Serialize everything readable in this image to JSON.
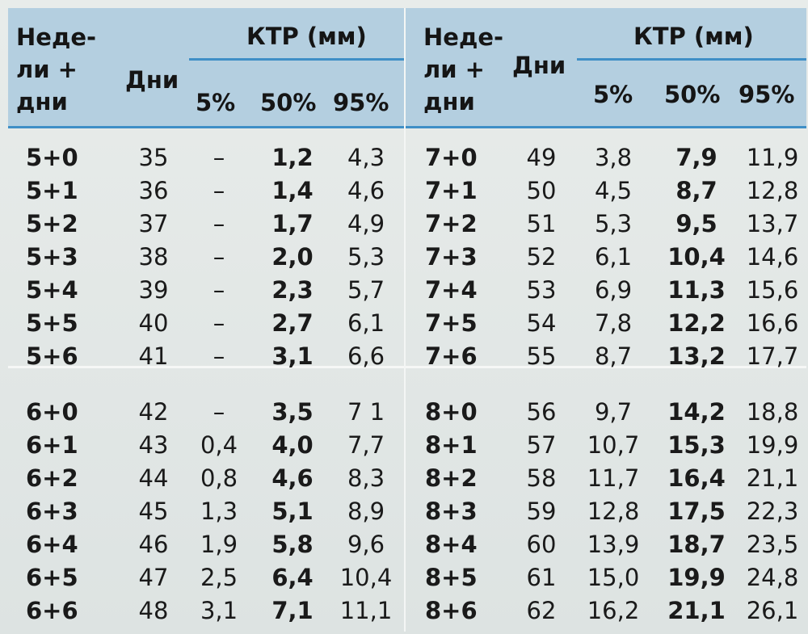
{
  "headers": {
    "weeks_days": "Неде-\nли +\nдни",
    "days": "Дни",
    "ktr": "КТР (мм)",
    "p5": "5%",
    "p50": "50%",
    "p95": "95%"
  },
  "tables": [
    {
      "blocks": [
        [
          {
            "week": "5+0",
            "days": "35",
            "p5": "–",
            "p50": "1,2",
            "p95": "4,3"
          },
          {
            "week": "5+1",
            "days": "36",
            "p5": "–",
            "p50": "1,4",
            "p95": "4,6"
          },
          {
            "week": "5+2",
            "days": "37",
            "p5": "–",
            "p50": "1,7",
            "p95": "4,9"
          },
          {
            "week": "5+3",
            "days": "38",
            "p5": "–",
            "p50": "2,0",
            "p95": "5,3"
          },
          {
            "week": "5+4",
            "days": "39",
            "p5": "–",
            "p50": "2,3",
            "p95": "5,7"
          },
          {
            "week": "5+5",
            "days": "40",
            "p5": "–",
            "p50": "2,7",
            "p95": "6,1"
          },
          {
            "week": "5+6",
            "days": "41",
            "p5": "–",
            "p50": "3,1",
            "p95": "6,6"
          }
        ],
        [
          {
            "week": "6+0",
            "days": "42",
            "p5": "–",
            "p50": "3,5",
            "p95": "7 1"
          },
          {
            "week": "6+1",
            "days": "43",
            "p5": "0,4",
            "p50": "4,0",
            "p95": "7,7"
          },
          {
            "week": "6+2",
            "days": "44",
            "p5": "0,8",
            "p50": "4,6",
            "p95": "8,3"
          },
          {
            "week": "6+3",
            "days": "45",
            "p5": "1,3",
            "p50": "5,1",
            "p95": "8,9"
          },
          {
            "week": "6+4",
            "days": "46",
            "p5": "1,9",
            "p50": "5,8",
            "p95": "9,6"
          },
          {
            "week": "6+5",
            "days": "47",
            "p5": "2,5",
            "p50": "6,4",
            "p95": "10,4"
          },
          {
            "week": "6+6",
            "days": "48",
            "p5": "3,1",
            "p50": "7,1",
            "p95": "11,1"
          }
        ]
      ]
    },
    {
      "blocks": [
        [
          {
            "week": "7+0",
            "days": "49",
            "p5": "3,8",
            "p50": "7,9",
            "p95": "11,9"
          },
          {
            "week": "7+1",
            "days": "50",
            "p5": "4,5",
            "p50": "8,7",
            "p95": "12,8"
          },
          {
            "week": "7+2",
            "days": "51",
            "p5": "5,3",
            "p50": "9,5",
            "p95": "13,7"
          },
          {
            "week": "7+3",
            "days": "52",
            "p5": "6,1",
            "p50": "10,4",
            "p95": "14,6"
          },
          {
            "week": "7+4",
            "days": "53",
            "p5": "6,9",
            "p50": "11,3",
            "p95": "15,6"
          },
          {
            "week": "7+5",
            "days": "54",
            "p5": "7,8",
            "p50": "12,2",
            "p95": "16,6"
          },
          {
            "week": "7+6",
            "days": "55",
            "p5": "8,7",
            "p50": "13,2",
            "p95": "17,7"
          }
        ],
        [
          {
            "week": "8+0",
            "days": "56",
            "p5": "9,7",
            "p50": "14,2",
            "p95": "18,8"
          },
          {
            "week": "8+1",
            "days": "57",
            "p5": "10,7",
            "p50": "15,3",
            "p95": "19,9"
          },
          {
            "week": "8+2",
            "days": "58",
            "p5": "11,7",
            "p50": "16,4",
            "p95": "21,1"
          },
          {
            "week": "8+3",
            "days": "59",
            "p5": "12,8",
            "p50": "17,5",
            "p95": "22,3"
          },
          {
            "week": "8+4",
            "days": "60",
            "p5": "13,9",
            "p50": "18,7",
            "p95": "23,5"
          },
          {
            "week": "8+5",
            "days": "61",
            "p5": "15,0",
            "p50": "19,9",
            "p95": "24,8"
          },
          {
            "week": "8+6",
            "days": "62",
            "p5": "16,2",
            "p50": "21,1",
            "p95": "26,1"
          }
        ]
      ]
    }
  ]
}
